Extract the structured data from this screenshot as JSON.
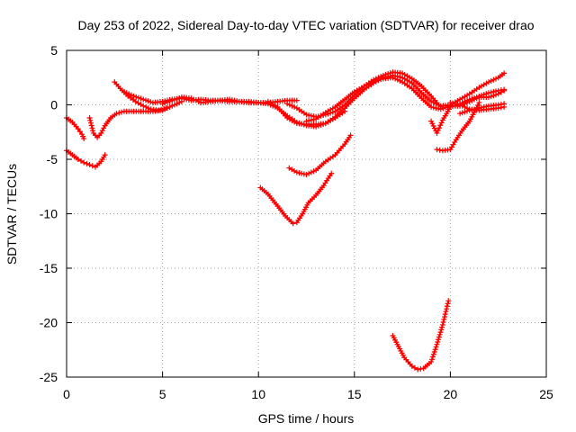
{
  "chart_data": {
    "type": "scatter",
    "title": "Day 253 of 2022, Sidereal Day-to-day VTEC variation (SDTVAR) for receiver drao",
    "xlabel": "GPS time / hours",
    "ylabel": "SDTVAR / TECUs",
    "xlim": [
      0,
      25
    ],
    "ylim": [
      -25,
      5
    ],
    "xticks": [
      0,
      5,
      10,
      15,
      20,
      25
    ],
    "yticks": [
      -25,
      -20,
      -15,
      -10,
      -5,
      0,
      5
    ],
    "grid": true,
    "color": "#ff0000",
    "marker": "plus",
    "series": [
      {
        "x": [
          0.0,
          0.3,
          0.6,
          0.9,
          1.2,
          1.5,
          1.8,
          2.0
        ],
        "y": [
          -4.2,
          -4.6,
          -5.0,
          -5.3,
          -5.5,
          -5.7,
          -5.2,
          -4.6
        ]
      },
      {
        "x": [
          0.0,
          0.3,
          0.6,
          0.8,
          0.9
        ],
        "y": [
          -1.2,
          -1.6,
          -2.2,
          -2.7,
          -3.1
        ]
      },
      {
        "x": [
          1.2,
          1.4,
          1.6,
          1.8,
          2.0,
          2.3,
          2.6,
          3.0,
          3.5,
          4.0,
          4.5,
          5.0,
          5.5,
          6.0
        ],
        "y": [
          -1.2,
          -2.6,
          -3.0,
          -2.6,
          -1.9,
          -1.2,
          -0.8,
          -0.6,
          -0.6,
          -0.6,
          -0.6,
          -0.5,
          -0.1,
          0.3
        ]
      },
      {
        "x": [
          2.5,
          2.8,
          3.2,
          3.6,
          4.0,
          4.4,
          4.8,
          5.2
        ],
        "y": [
          2.1,
          1.5,
          0.8,
          0.3,
          -0.1,
          -0.4,
          -0.5,
          -0.3
        ]
      },
      {
        "x": [
          3.0,
          3.5,
          4.0,
          4.5,
          5.0,
          5.5,
          6.0,
          6.5,
          7.0,
          7.5,
          8.0,
          8.5,
          9.0,
          9.5,
          10.0,
          10.5,
          11.0,
          11.5,
          12.0
        ],
        "y": [
          1.2,
          0.8,
          0.5,
          0.2,
          0.3,
          0.5,
          0.6,
          0.4,
          0.5,
          0.4,
          0.4,
          0.3,
          0.3,
          0.3,
          0.2,
          0.2,
          0.3,
          0.4,
          0.4
        ]
      },
      {
        "x": [
          5.0,
          5.5,
          6.0,
          6.5,
          7.0,
          7.5,
          8.0,
          8.5,
          9.0,
          9.5,
          10.0,
          10.5,
          11.0,
          11.5,
          12.0,
          12.5,
          13.0,
          13.5,
          14.0,
          14.5
        ],
        "y": [
          0.1,
          0.4,
          0.7,
          0.6,
          0.2,
          0.3,
          0.4,
          0.5,
          0.3,
          0.2,
          0.2,
          0.1,
          -0.3,
          -1.0,
          -1.6,
          -1.9,
          -2.0,
          -1.7,
          -1.2,
          -0.6
        ]
      },
      {
        "x": [
          10.5,
          11.0,
          11.5,
          12.0,
          12.5,
          13.0,
          13.5,
          14.0,
          14.5,
          15.0,
          15.5,
          16.0,
          16.5,
          17.0,
          17.5,
          18.0,
          18.5,
          19.0,
          19.5,
          20.0,
          20.5,
          21.0,
          21.5,
          22.0,
          22.5,
          22.8
        ],
        "y": [
          0.3,
          -0.2,
          -1.2,
          -1.7,
          -1.8,
          -1.8,
          -1.7,
          -1.1,
          -0.3,
          0.6,
          1.4,
          2.0,
          2.5,
          2.7,
          2.5,
          2.0,
          1.1,
          0.3,
          -0.1,
          0.0,
          0.5,
          1.0,
          1.6,
          2.1,
          2.5,
          2.9
        ]
      },
      {
        "x": [
          11.5,
          12.0,
          12.5,
          13.0,
          13.5,
          14.0,
          14.5,
          15.0,
          15.5,
          16.0,
          16.5,
          17.0,
          17.5,
          18.0,
          18.5,
          19.0,
          19.5
        ],
        "y": [
          0.1,
          -0.3,
          -0.9,
          -1.1,
          -0.9,
          -0.6,
          0.0,
          0.9,
          1.7,
          2.3,
          2.7,
          3.0,
          2.9,
          2.4,
          1.7,
          0.8,
          -0.2
        ]
      },
      {
        "x": [
          12.5,
          13.0,
          13.5,
          14.0,
          14.5,
          15.0,
          15.5,
          16.0,
          16.5,
          17.0,
          17.5,
          18.0,
          18.5,
          19.0,
          19.5,
          20.0,
          20.5,
          21.0,
          21.5,
          22.0,
          22.5,
          22.8
        ],
        "y": [
          -1.5,
          -1.3,
          -0.7,
          -0.2,
          0.5,
          1.2,
          1.7,
          2.2,
          2.4,
          2.5,
          2.1,
          1.5,
          0.6,
          -0.2,
          -0.4,
          -0.1,
          -0.1,
          0.3,
          0.7,
          0.7,
          1.0,
          1.3
        ]
      },
      {
        "x": [
          19.0,
          19.3,
          19.6,
          20.0,
          20.5,
          21.0,
          21.5,
          22.0,
          22.5,
          22.8
        ],
        "y": [
          -1.5,
          -2.6,
          -1.4,
          -0.2,
          0.1,
          0.5,
          0.8,
          1.1,
          1.3,
          1.4
        ]
      },
      {
        "x": [
          19.3,
          19.6,
          20.0,
          20.3,
          20.6,
          21.0,
          21.3,
          21.5
        ],
        "y": [
          -4.1,
          -4.2,
          -4.1,
          -3.2,
          -2.4,
          -1.5,
          -0.5,
          0.2
        ]
      },
      {
        "x": [
          20.5,
          21.0,
          21.5,
          22.0,
          22.5,
          22.8
        ],
        "y": [
          -0.8,
          -0.5,
          -0.3,
          -0.1,
          0.0,
          0.1
        ]
      },
      {
        "x": [
          20.0,
          20.5,
          21.0,
          21.5,
          22.0,
          22.5,
          22.8
        ],
        "y": [
          0.2,
          0.0,
          -0.4,
          -0.5,
          -0.4,
          -0.3,
          -0.2
        ]
      },
      {
        "x": [
          10.1,
          10.5,
          11.0,
          11.4,
          11.8,
          12.0,
          12.3,
          12.6,
          13.0,
          13.4,
          13.8
        ],
        "y": [
          -7.6,
          -8.2,
          -9.3,
          -10.2,
          -10.9,
          -10.8,
          -10.0,
          -9.0,
          -8.3,
          -7.4,
          -6.3
        ]
      },
      {
        "x": [
          11.6,
          12.0,
          12.5,
          13.0,
          13.5,
          14.0,
          14.5,
          14.8
        ],
        "y": [
          -5.8,
          -6.2,
          -6.4,
          -6.0,
          -5.2,
          -4.6,
          -3.6,
          -2.8
        ]
      },
      {
        "x": [
          17.0,
          17.3,
          17.6,
          18.0,
          18.3,
          18.6,
          19.0,
          19.3,
          19.6,
          19.9
        ],
        "y": [
          -21.2,
          -22.2,
          -23.2,
          -24.0,
          -24.3,
          -24.2,
          -23.6,
          -22.0,
          -20.2,
          -18.0
        ]
      }
    ]
  }
}
